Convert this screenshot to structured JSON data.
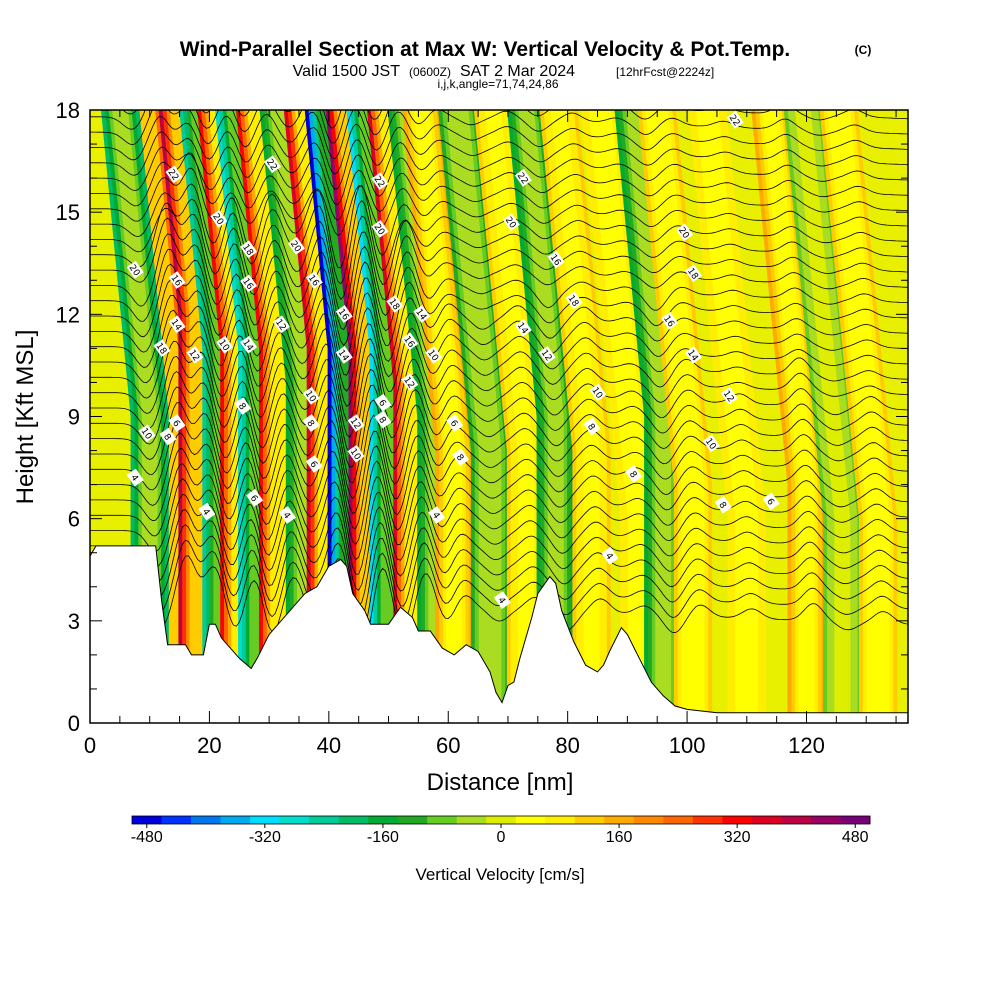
{
  "title": {
    "main": "Wind-Parallel Section at Max W: Vertical Velocity & Pot.Temp.",
    "copyright": "(C)",
    "valid_prefix": "Valid 1500 JST",
    "valid_zulu": "(0600Z)",
    "valid_date": "SAT 2 Mar 2024",
    "forecast": "[12hrFcst@2224z]",
    "indices": "i,j,k,angle=71,74,24,86"
  },
  "chart_data": {
    "type": "heatmap",
    "xlabel": "Distance [nm]",
    "ylabel": "Height [Kft MSL]",
    "xlim": [
      0,
      137
    ],
    "ylim": [
      0,
      18
    ],
    "x_ticks": [
      0,
      20,
      40,
      60,
      80,
      100,
      120
    ],
    "y_ticks": [
      0,
      3,
      6,
      9,
      12,
      15,
      18
    ],
    "x_minor_step": 5,
    "y_minor_step": 1,
    "colorbar": {
      "title": "Vertical Velocity [cm/s]",
      "min": -500,
      "max": 500,
      "ticks": [
        -480,
        -320,
        -160,
        0,
        160,
        320,
        480
      ],
      "tick_labels": [
        "-480",
        "-320",
        "-160",
        "0",
        "160",
        "320",
        "480"
      ],
      "colors": [
        "#0000dd",
        "#0033ff",
        "#0077ee",
        "#00aaee",
        "#00ddff",
        "#00ddcc",
        "#00cc99",
        "#00bb66",
        "#00aa33",
        "#22aa22",
        "#66cc22",
        "#aadd22",
        "#ddee00",
        "#ffff00",
        "#ffee00",
        "#ffcc00",
        "#ffaa00",
        "#ff8800",
        "#ff6600",
        "#ff3300",
        "#ff0000",
        "#dd0022",
        "#bb0044",
        "#990066",
        "#770077"
      ]
    },
    "velocity_bands": [
      {
        "x": 14,
        "w": 475,
        "h": 10
      },
      {
        "x": 10,
        "w": -200,
        "h": 9
      },
      {
        "x": 18,
        "w": 380,
        "h": 12
      },
      {
        "x": 22,
        "w": -250,
        "h": 11
      },
      {
        "x": 25,
        "w": 330,
        "h": 11
      },
      {
        "x": 28,
        "w": -300,
        "h": 11
      },
      {
        "x": 31.5,
        "w": 300,
        "h": 11
      },
      {
        "x": 36,
        "w": -180,
        "h": 10
      },
      {
        "x": 39.5,
        "w": 350,
        "h": 11
      },
      {
        "x": 43,
        "w": -470,
        "h": 11
      },
      {
        "x": 46.5,
        "w": 420,
        "h": 11
      },
      {
        "x": 50,
        "w": -330,
        "h": 11
      },
      {
        "x": 54,
        "w": 340,
        "h": 10
      },
      {
        "x": 58,
        "w": -160,
        "h": 9
      },
      {
        "x": 61,
        "w": 140,
        "h": 8
      },
      {
        "x": 67,
        "w": -110,
        "h": 8
      },
      {
        "x": 73,
        "w": 120,
        "h": 8
      },
      {
        "x": 78,
        "w": -170,
        "h": 9
      },
      {
        "x": 84,
        "w": 130,
        "h": 8
      },
      {
        "x": 92,
        "w": 80,
        "h": 6
      },
      {
        "x": 96,
        "w": -160,
        "h": 9
      },
      {
        "x": 101,
        "w": 110,
        "h": 7
      },
      {
        "x": 110,
        "w": 90,
        "h": 6
      },
      {
        "x": 120,
        "w": 160,
        "h": 7
      },
      {
        "x": 126,
        "w": -70,
        "h": 6
      },
      {
        "x": 132,
        "w": 110,
        "h": 6
      }
    ],
    "terrain": [
      [
        0,
        4.9
      ],
      [
        1,
        5.2
      ],
      [
        11,
        5.2
      ],
      [
        12,
        3.6
      ],
      [
        13,
        2.3
      ],
      [
        16,
        2.3
      ],
      [
        17,
        2.0
      ],
      [
        19,
        2.0
      ],
      [
        20,
        2.9
      ],
      [
        21,
        2.9
      ],
      [
        22,
        2.5
      ],
      [
        25,
        1.9
      ],
      [
        27,
        1.6
      ],
      [
        28,
        1.9
      ],
      [
        30,
        2.6
      ],
      [
        32,
        3.0
      ],
      [
        36,
        3.8
      ],
      [
        38,
        4.0
      ],
      [
        40,
        4.6
      ],
      [
        42,
        4.8
      ],
      [
        43,
        4.6
      ],
      [
        44,
        3.8
      ],
      [
        46,
        3.3
      ],
      [
        47,
        2.9
      ],
      [
        50,
        2.9
      ],
      [
        52,
        3.4
      ],
      [
        54,
        3.1
      ],
      [
        55,
        2.7
      ],
      [
        57,
        2.7
      ],
      [
        59,
        2.2
      ],
      [
        61,
        2.0
      ],
      [
        63,
        2.3
      ],
      [
        65,
        2.1
      ],
      [
        67,
        1.5
      ],
      [
        68,
        0.9
      ],
      [
        69,
        0.6
      ],
      [
        70,
        1.1
      ],
      [
        71,
        1.2
      ],
      [
        72,
        1.9
      ],
      [
        74,
        3.1
      ],
      [
        75,
        3.8
      ],
      [
        77,
        4.3
      ],
      [
        78,
        4.1
      ],
      [
        79,
        3.3
      ],
      [
        81,
        2.4
      ],
      [
        83,
        1.7
      ],
      [
        85,
        1.5
      ],
      [
        86,
        1.7
      ],
      [
        87,
        2.1
      ],
      [
        89,
        2.8
      ],
      [
        90,
        2.6
      ],
      [
        92,
        1.9
      ],
      [
        94,
        1.2
      ],
      [
        96,
        0.8
      ],
      [
        98,
        0.5
      ],
      [
        100,
        0.4
      ],
      [
        105,
        0.3
      ],
      [
        110,
        0.3
      ],
      [
        137,
        0.3
      ]
    ],
    "theta_contour_labels": [
      "4",
      "6",
      "8",
      "10",
      "12",
      "14",
      "16",
      "18",
      "20",
      "22"
    ],
    "contour_labels": [
      {
        "x": 7.5,
        "y": 7.2,
        "t": "4"
      },
      {
        "x": 19.5,
        "y": 6.2,
        "t": "4"
      },
      {
        "x": 33,
        "y": 6.1,
        "t": "4"
      },
      {
        "x": 58,
        "y": 6.1,
        "t": "4"
      },
      {
        "x": 69,
        "y": 3.6,
        "t": "4"
      },
      {
        "x": 87,
        "y": 4.9,
        "t": "4"
      },
      {
        "x": 13,
        "y": 8.4,
        "t": "8"
      },
      {
        "x": 14.5,
        "y": 8.8,
        "t": "6"
      },
      {
        "x": 27.5,
        "y": 6.6,
        "t": "6"
      },
      {
        "x": 37.5,
        "y": 7.6,
        "t": "6"
      },
      {
        "x": 61,
        "y": 8.8,
        "t": "6"
      },
      {
        "x": 62,
        "y": 7.8,
        "t": "8"
      },
      {
        "x": 84,
        "y": 8.7,
        "t": "8"
      },
      {
        "x": 91,
        "y": 7.3,
        "t": "8"
      },
      {
        "x": 106,
        "y": 6.4,
        "t": "8"
      },
      {
        "x": 114,
        "y": 6.5,
        "t": "6"
      },
      {
        "x": 37,
        "y": 8.8,
        "t": "8"
      },
      {
        "x": 25.5,
        "y": 9.3,
        "t": "8"
      },
      {
        "x": 9.5,
        "y": 8.5,
        "t": "10"
      },
      {
        "x": 37,
        "y": 9.6,
        "t": "10"
      },
      {
        "x": 44.5,
        "y": 7.9,
        "t": "10"
      },
      {
        "x": 49,
        "y": 9.4,
        "t": "6"
      },
      {
        "x": 49,
        "y": 8.9,
        "t": "8"
      },
      {
        "x": 57.5,
        "y": 10.8,
        "t": "10"
      },
      {
        "x": 85,
        "y": 9.7,
        "t": "10"
      },
      {
        "x": 104,
        "y": 8.2,
        "t": "10"
      },
      {
        "x": 22.5,
        "y": 11.1,
        "t": "10"
      },
      {
        "x": 17.5,
        "y": 10.8,
        "t": "12"
      },
      {
        "x": 32,
        "y": 11.7,
        "t": "12"
      },
      {
        "x": 44.5,
        "y": 8.8,
        "t": "12"
      },
      {
        "x": 53.5,
        "y": 10.0,
        "t": "12"
      },
      {
        "x": 76.5,
        "y": 10.8,
        "t": "12"
      },
      {
        "x": 107,
        "y": 9.6,
        "t": "12"
      },
      {
        "x": 14.5,
        "y": 11.7,
        "t": "14"
      },
      {
        "x": 26.5,
        "y": 11.1,
        "t": "14"
      },
      {
        "x": 42.5,
        "y": 10.8,
        "t": "14"
      },
      {
        "x": 55.5,
        "y": 12.0,
        "t": "14"
      },
      {
        "x": 72.5,
        "y": 11.6,
        "t": "14"
      },
      {
        "x": 101,
        "y": 10.8,
        "t": "14"
      },
      {
        "x": 12,
        "y": 11.0,
        "t": "18"
      },
      {
        "x": 14.5,
        "y": 13.0,
        "t": "16"
      },
      {
        "x": 26.5,
        "y": 12.9,
        "t": "16"
      },
      {
        "x": 37.5,
        "y": 13.0,
        "t": "16"
      },
      {
        "x": 42.5,
        "y": 12.0,
        "t": "16"
      },
      {
        "x": 51,
        "y": 12.3,
        "t": "18"
      },
      {
        "x": 53.5,
        "y": 11.2,
        "t": "16"
      },
      {
        "x": 81,
        "y": 12.4,
        "t": "18"
      },
      {
        "x": 97,
        "y": 11.8,
        "t": "16"
      },
      {
        "x": 26.5,
        "y": 13.9,
        "t": "18"
      },
      {
        "x": 78,
        "y": 13.6,
        "t": "16"
      },
      {
        "x": 101,
        "y": 13.2,
        "t": "18"
      },
      {
        "x": 7.5,
        "y": 13.3,
        "t": "20"
      },
      {
        "x": 21.5,
        "y": 14.8,
        "t": "20"
      },
      {
        "x": 34.5,
        "y": 14.0,
        "t": "20"
      },
      {
        "x": 48.5,
        "y": 14.5,
        "t": "20"
      },
      {
        "x": 70.5,
        "y": 14.7,
        "t": "20"
      },
      {
        "x": 99.5,
        "y": 14.4,
        "t": "20"
      },
      {
        "x": 14,
        "y": 16.1,
        "t": "22"
      },
      {
        "x": 30.5,
        "y": 16.4,
        "t": "22"
      },
      {
        "x": 48.5,
        "y": 15.9,
        "t": "22"
      },
      {
        "x": 72.5,
        "y": 16.0,
        "t": "22"
      },
      {
        "x": 108,
        "y": 17.7,
        "t": "22"
      }
    ]
  }
}
